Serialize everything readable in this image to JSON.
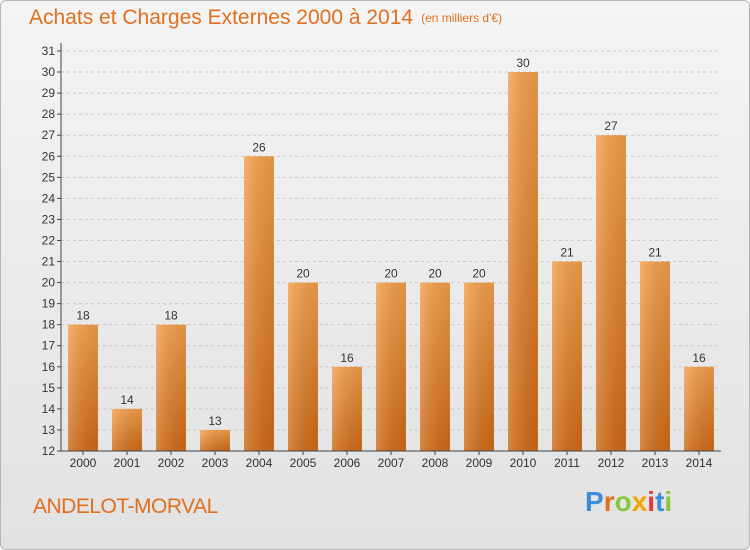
{
  "header": {
    "title": "Achats et Charges Externes 2000 à 2014",
    "subtitle": "(en milliers d'€)"
  },
  "footer": {
    "place_name": "ANDELOT-MORVAL",
    "logo_text": "Proxiti"
  },
  "colors": {
    "accent": "#e0701f",
    "bar_light": "#f5a04a",
    "bar_dark": "#cf6a16",
    "logo_letters": [
      "#3a8fd8",
      "#e0701f",
      "#8cc63f",
      "#f5a300",
      "#e03a3a",
      "#3a8fd8",
      "#8cc63f"
    ]
  },
  "chart_data": {
    "type": "bar",
    "categories": [
      "2000",
      "2001",
      "2002",
      "2003",
      "2004",
      "2005",
      "2006",
      "2007",
      "2008",
      "2009",
      "2010",
      "2011",
      "2012",
      "2013",
      "2014"
    ],
    "values": [
      18,
      14,
      18,
      13,
      26,
      20,
      16,
      20,
      20,
      20,
      30,
      21,
      27,
      21,
      16
    ],
    "data_labels": [
      "18",
      "14",
      "18",
      "13",
      "26",
      "20",
      "16",
      "20",
      "20",
      "20",
      "30",
      "21",
      "27",
      "21",
      "16"
    ],
    "ylim": [
      12,
      31
    ],
    "yticks": [
      "12",
      "13",
      "14",
      "15",
      "16",
      "17",
      "18",
      "19",
      "20",
      "21",
      "22",
      "23",
      "24",
      "25",
      "26",
      "27",
      "28",
      "29",
      "30",
      "31"
    ],
    "grid": true,
    "legend": "none"
  }
}
